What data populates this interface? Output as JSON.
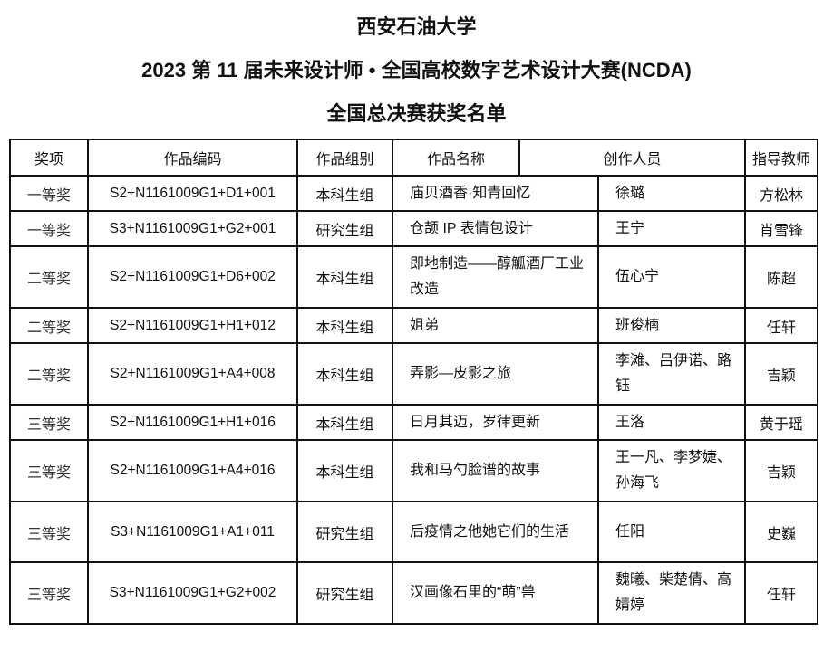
{
  "titles": {
    "university": "西安石油大学",
    "competition": "2023 第 11 届未来设计师 • 全国高校数字艺术设计大赛(NCDA)",
    "list": "全国总决赛获奖名单"
  },
  "table": {
    "headers": {
      "award": "奖项",
      "code": "作品编码",
      "group": "作品组别",
      "name": "作品名称",
      "authors": "创作人员",
      "advisor": "指导教师"
    },
    "rows": [
      {
        "award": "一等奖",
        "code": "S2+N1161009G1+D1+001",
        "group": "本科生组",
        "name": "庙贝酒香·知青回忆",
        "authors": "徐璐",
        "advisor": "方松林"
      },
      {
        "award": "一等奖",
        "code": "S3+N1161009G1+G2+001",
        "group": "研究生组",
        "name": "仓颉 IP 表情包设计",
        "authors": "王宁",
        "advisor": "肖雪锋"
      },
      {
        "award": "二等奖",
        "code": "S2+N1161009G1+D6+002",
        "group": "本科生组",
        "name": "即地制造——醇觚酒厂工业改造",
        "authors": "伍心宁",
        "advisor": "陈超"
      },
      {
        "award": "二等奖",
        "code": "S2+N1161009G1+H1+012",
        "group": "本科生组",
        "name": "姐弟",
        "authors": "班俊楠",
        "advisor": "任轩"
      },
      {
        "award": "二等奖",
        "code": "S2+N1161009G1+A4+008",
        "group": "本科生组",
        "name": "弄影—皮影之旅",
        "authors": "李滩、吕伊诺、路钰",
        "advisor": "吉颖"
      },
      {
        "award": "三等奖",
        "code": "S2+N1161009G1+H1+016",
        "group": "本科生组",
        "name": "日月其迈，岁律更新",
        "authors": "王洛",
        "advisor": "黄于瑶"
      },
      {
        "award": "三等奖",
        "code": "S2+N1161009G1+A4+016",
        "group": "本科生组",
        "name": "我和马勺脸谱的故事",
        "authors": "王一凡、李梦婕、孙海飞",
        "advisor": "吉颖"
      },
      {
        "award": "三等奖",
        "code": "S3+N1161009G1+A1+011",
        "group": "研究生组",
        "name": "后疫情之他她它们的生活",
        "authors": "任阳",
        "advisor": "史巍"
      },
      {
        "award": "三等奖",
        "code": "S3+N1161009G1+G2+002",
        "group": "研究生组",
        "name": "汉画像石里的“萌”兽",
        "authors": "魏曦、柴楚倩、高婧婷",
        "advisor": "任轩"
      }
    ]
  }
}
